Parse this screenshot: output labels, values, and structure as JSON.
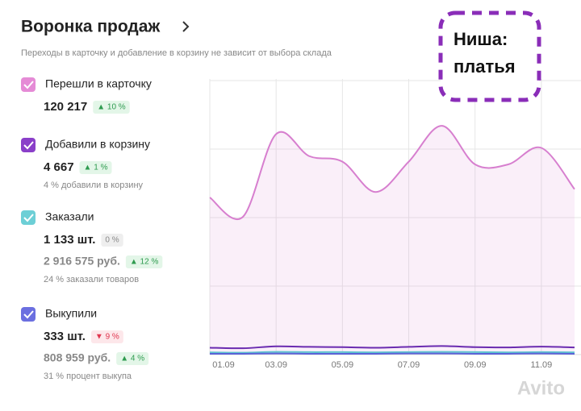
{
  "header": {
    "title": "Воронка продаж",
    "subtitle": "Переходы в карточку и добавление в корзину не зависит от выбора склада"
  },
  "metrics": [
    {
      "label": "Перешли в карточку",
      "color": "#e58bd6",
      "rows": [
        {
          "value": "120 217",
          "badge": "▲ 10 %",
          "trend": "up"
        }
      ]
    },
    {
      "label": "Добавили в корзину",
      "color": "#8a3fc9",
      "rows": [
        {
          "value": "4 667",
          "badge": "▲ 1 %",
          "trend": "up"
        }
      ],
      "note": "4 % добавили в корзину"
    },
    {
      "label": "Заказали",
      "color": "#6dcfd6",
      "rows": [
        {
          "value": "1 133 шт.",
          "badge": "0 %",
          "trend": "flat"
        },
        {
          "value": "2 916 575 руб.",
          "badge": "▲ 12 %",
          "trend": "up"
        }
      ],
      "note": "24 % заказали товаров"
    },
    {
      "label": "Выкупили",
      "color": "#6b6fe0",
      "rows": [
        {
          "value": "333 шт.",
          "badge": "▼ 9 %",
          "trend": "down"
        },
        {
          "value": "808 959 руб.",
          "badge": "▲ 4 %",
          "trend": "up"
        }
      ],
      "note": "31 % процент выкупа"
    }
  ],
  "sticker": {
    "lines": [
      "Ниша:",
      "платья"
    ]
  },
  "watermark": "Avito",
  "chart_data": {
    "type": "line",
    "x": [
      "01.09",
      null,
      "03.09",
      null,
      "05.09",
      null,
      "07.09",
      null,
      "09.09",
      null,
      "11.09",
      null
    ],
    "ylim": [
      0,
      100
    ],
    "series": [
      {
        "name": "Перешли в карточку",
        "color": "#d77fcf",
        "values": [
          57,
          50,
          80,
          72,
          70,
          59,
          70,
          83,
          69,
          69,
          75,
          60
        ]
      },
      {
        "name": "Добавили в корзину",
        "color": "#6a2bb0",
        "values": [
          2.5,
          2.3,
          3,
          2.8,
          2.7,
          2.5,
          2.8,
          3.1,
          2.7,
          2.6,
          2.9,
          2.6
        ]
      },
      {
        "name": "Заказали",
        "color": "#5fc4cf",
        "values": [
          0.8,
          0.7,
          1,
          0.9,
          0.9,
          0.8,
          0.9,
          1,
          0.9,
          0.8,
          0.9,
          0.8
        ]
      },
      {
        "name": "Выкупили",
        "color": "#5b63d8",
        "values": [
          0.3,
          0.3,
          0.4,
          0.3,
          0.3,
          0.3,
          0.4,
          0.4,
          0.3,
          0.3,
          0.4,
          0.3
        ]
      }
    ]
  }
}
